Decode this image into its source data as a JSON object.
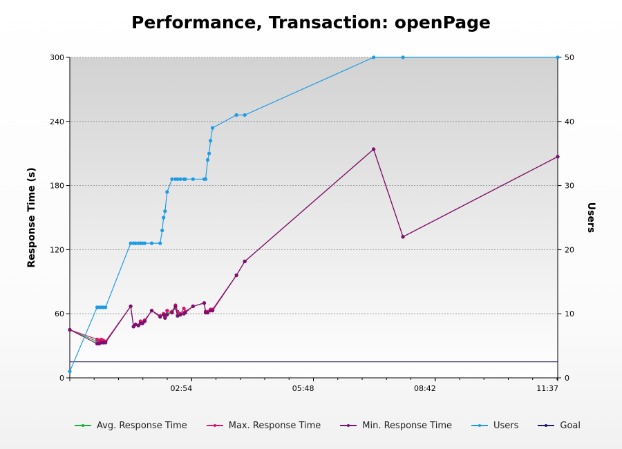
{
  "chart_data": {
    "type": "line",
    "title": "Performance, Transaction: openPage",
    "ylabel": "Response Time (s)",
    "y2label": "Users",
    "ylim": [
      0,
      300
    ],
    "y2lim": [
      0,
      50
    ],
    "y_ticks": [
      0,
      60,
      120,
      180,
      240,
      300
    ],
    "y2_ticks": [
      0,
      10,
      20,
      30,
      40,
      50
    ],
    "xlim": [
      0,
      697
    ],
    "x_ticks": [
      {
        "value": 174,
        "label": "02:54"
      },
      {
        "value": 348,
        "label": "05:48"
      },
      {
        "value": 522,
        "label": "08:42"
      },
      {
        "value": 697,
        "label": "11:37"
      }
    ],
    "x_unit": "seconds elapsed (mm:ss)",
    "grid": true,
    "legend_position": "bottom",
    "series": [
      {
        "name": "Avg. Response Time",
        "color": "#16b33b",
        "axis": "left",
        "points": [
          [
            0,
            45
          ],
          [
            39,
            34
          ],
          [
            42,
            33
          ],
          [
            45,
            34
          ],
          [
            48,
            33
          ],
          [
            51,
            34
          ],
          [
            87,
            67
          ],
          [
            91,
            48
          ],
          [
            94,
            50
          ],
          [
            98,
            49
          ],
          [
            101,
            52
          ],
          [
            104,
            51
          ],
          [
            107,
            53
          ],
          [
            117,
            63
          ],
          [
            129,
            58
          ],
          [
            134,
            60
          ],
          [
            136,
            57
          ],
          [
            139,
            60
          ],
          [
            146,
            62
          ],
          [
            151,
            65
          ],
          [
            154,
            59
          ],
          [
            158,
            59
          ],
          [
            163,
            61
          ],
          [
            165,
            62
          ],
          [
            176,
            67
          ],
          [
            192,
            70
          ],
          [
            194,
            62
          ],
          [
            197,
            62
          ],
          [
            201,
            64
          ],
          [
            204,
            64
          ],
          [
            238,
            96
          ],
          [
            250,
            109
          ],
          [
            434,
            214
          ],
          [
            476,
            132
          ],
          [
            697,
            207
          ]
        ]
      },
      {
        "name": "Max. Response Time",
        "color": "#e0146e",
        "axis": "left",
        "points": [
          [
            0,
            45
          ],
          [
            39,
            36
          ],
          [
            42,
            35
          ],
          [
            45,
            36
          ],
          [
            48,
            35
          ],
          [
            51,
            34
          ],
          [
            87,
            67
          ],
          [
            91,
            48
          ],
          [
            94,
            50
          ],
          [
            98,
            49
          ],
          [
            101,
            53
          ],
          [
            104,
            52
          ],
          [
            107,
            54
          ],
          [
            117,
            63
          ],
          [
            129,
            58
          ],
          [
            134,
            60
          ],
          [
            136,
            58
          ],
          [
            139,
            63
          ],
          [
            146,
            62
          ],
          [
            151,
            68
          ],
          [
            154,
            62
          ],
          [
            158,
            60
          ],
          [
            163,
            65
          ],
          [
            165,
            62
          ],
          [
            176,
            67
          ],
          [
            192,
            70
          ],
          [
            194,
            62
          ],
          [
            197,
            62
          ],
          [
            201,
            64
          ],
          [
            204,
            64
          ],
          [
            238,
            96
          ],
          [
            250,
            109
          ],
          [
            434,
            214
          ],
          [
            476,
            132
          ],
          [
            697,
            207
          ]
        ]
      },
      {
        "name": "Min. Response Time",
        "color": "#7d1070",
        "axis": "left",
        "points": [
          [
            0,
            45
          ],
          [
            39,
            32
          ],
          [
            42,
            32
          ],
          [
            45,
            33
          ],
          [
            48,
            33
          ],
          [
            51,
            33
          ],
          [
            87,
            67
          ],
          [
            91,
            48
          ],
          [
            94,
            50
          ],
          [
            98,
            49
          ],
          [
            101,
            51
          ],
          [
            104,
            51
          ],
          [
            107,
            53
          ],
          [
            117,
            63
          ],
          [
            129,
            57
          ],
          [
            134,
            59
          ],
          [
            136,
            56
          ],
          [
            139,
            59
          ],
          [
            146,
            61
          ],
          [
            151,
            67
          ],
          [
            154,
            58
          ],
          [
            158,
            59
          ],
          [
            163,
            60
          ],
          [
            165,
            61
          ],
          [
            176,
            67
          ],
          [
            192,
            70
          ],
          [
            194,
            61
          ],
          [
            197,
            61
          ],
          [
            201,
            63
          ],
          [
            204,
            63
          ],
          [
            238,
            96
          ],
          [
            250,
            109
          ],
          [
            434,
            214
          ],
          [
            476,
            132
          ],
          [
            697,
            207
          ]
        ]
      },
      {
        "name": "Users",
        "color": "#1e9be5",
        "axis": "right",
        "points": [
          [
            0,
            1
          ],
          [
            39,
            11
          ],
          [
            42,
            11
          ],
          [
            45,
            11
          ],
          [
            48,
            11
          ],
          [
            51,
            11
          ],
          [
            87,
            21
          ],
          [
            91,
            21
          ],
          [
            94,
            21
          ],
          [
            98,
            21
          ],
          [
            101,
            21
          ],
          [
            104,
            21
          ],
          [
            107,
            21
          ],
          [
            117,
            21
          ],
          [
            129,
            21
          ],
          [
            132,
            23
          ],
          [
            134,
            25
          ],
          [
            136,
            26
          ],
          [
            139,
            29
          ],
          [
            146,
            31
          ],
          [
            151,
            31
          ],
          [
            154,
            31
          ],
          [
            158,
            31
          ],
          [
            163,
            31
          ],
          [
            165,
            31
          ],
          [
            176,
            31
          ],
          [
            192,
            31
          ],
          [
            194,
            31
          ],
          [
            197,
            34
          ],
          [
            199,
            35
          ],
          [
            201,
            37
          ],
          [
            204,
            39
          ],
          [
            238,
            41
          ],
          [
            250,
            41
          ],
          [
            434,
            50
          ],
          [
            476,
            50
          ],
          [
            697,
            50
          ]
        ]
      },
      {
        "name": "Goal",
        "color": "#1a1a6e",
        "axis": "left",
        "points": [
          [
            0,
            15
          ],
          [
            697,
            15
          ]
        ]
      }
    ]
  }
}
